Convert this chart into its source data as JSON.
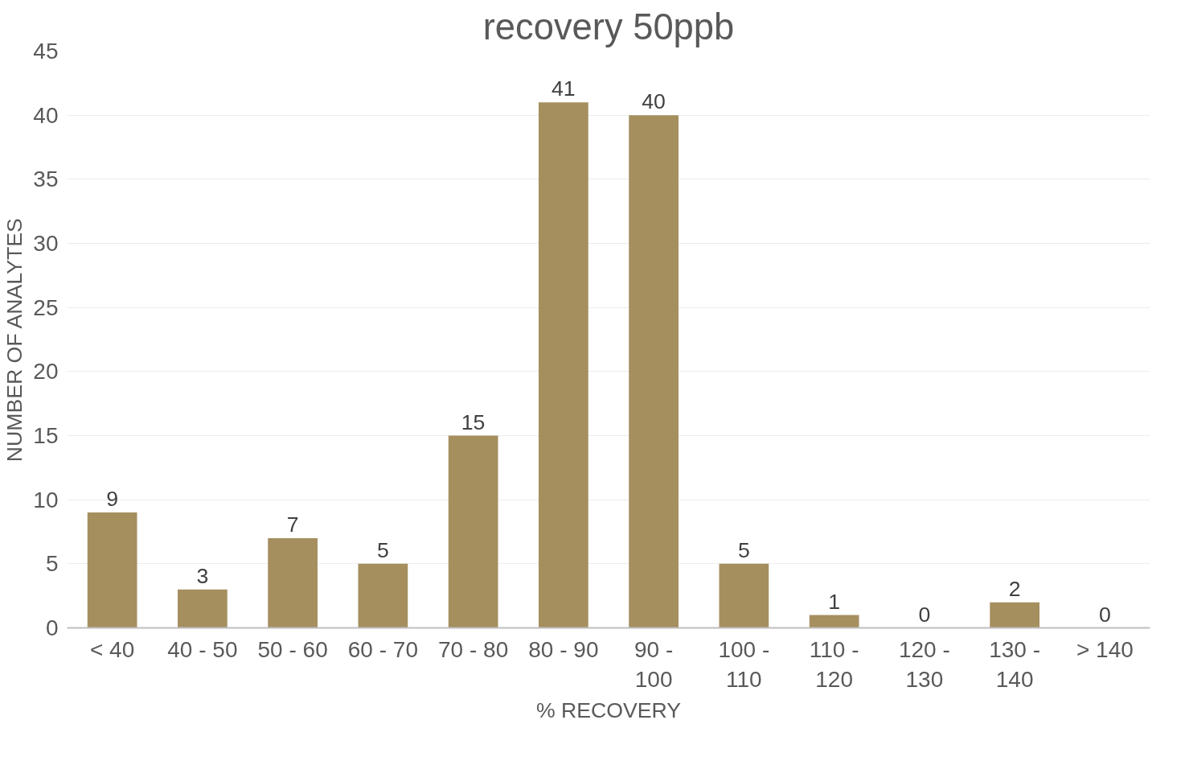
{
  "chart_data": {
    "type": "bar",
    "title": "recovery 50ppb",
    "xlabel": "% RECOVERY",
    "ylabel": "NUMBER OF ANALYTES",
    "categories": [
      "< 40",
      "40 - 50",
      "50 - 60",
      "60 - 70",
      "70 - 80",
      "80 - 90",
      "90 - 100",
      "100 - 110",
      "110 - 120",
      "120 - 130",
      "130 - 140",
      "> 140"
    ],
    "values": [
      9,
      3,
      7,
      5,
      15,
      41,
      40,
      5,
      1,
      0,
      2,
      0
    ],
    "color": "#a58f5f",
    "ylim": [
      0,
      45
    ],
    "yticks": [
      0,
      5,
      10,
      15,
      20,
      25,
      30,
      35,
      40,
      45
    ],
    "grid": "y",
    "data_labels": true
  }
}
